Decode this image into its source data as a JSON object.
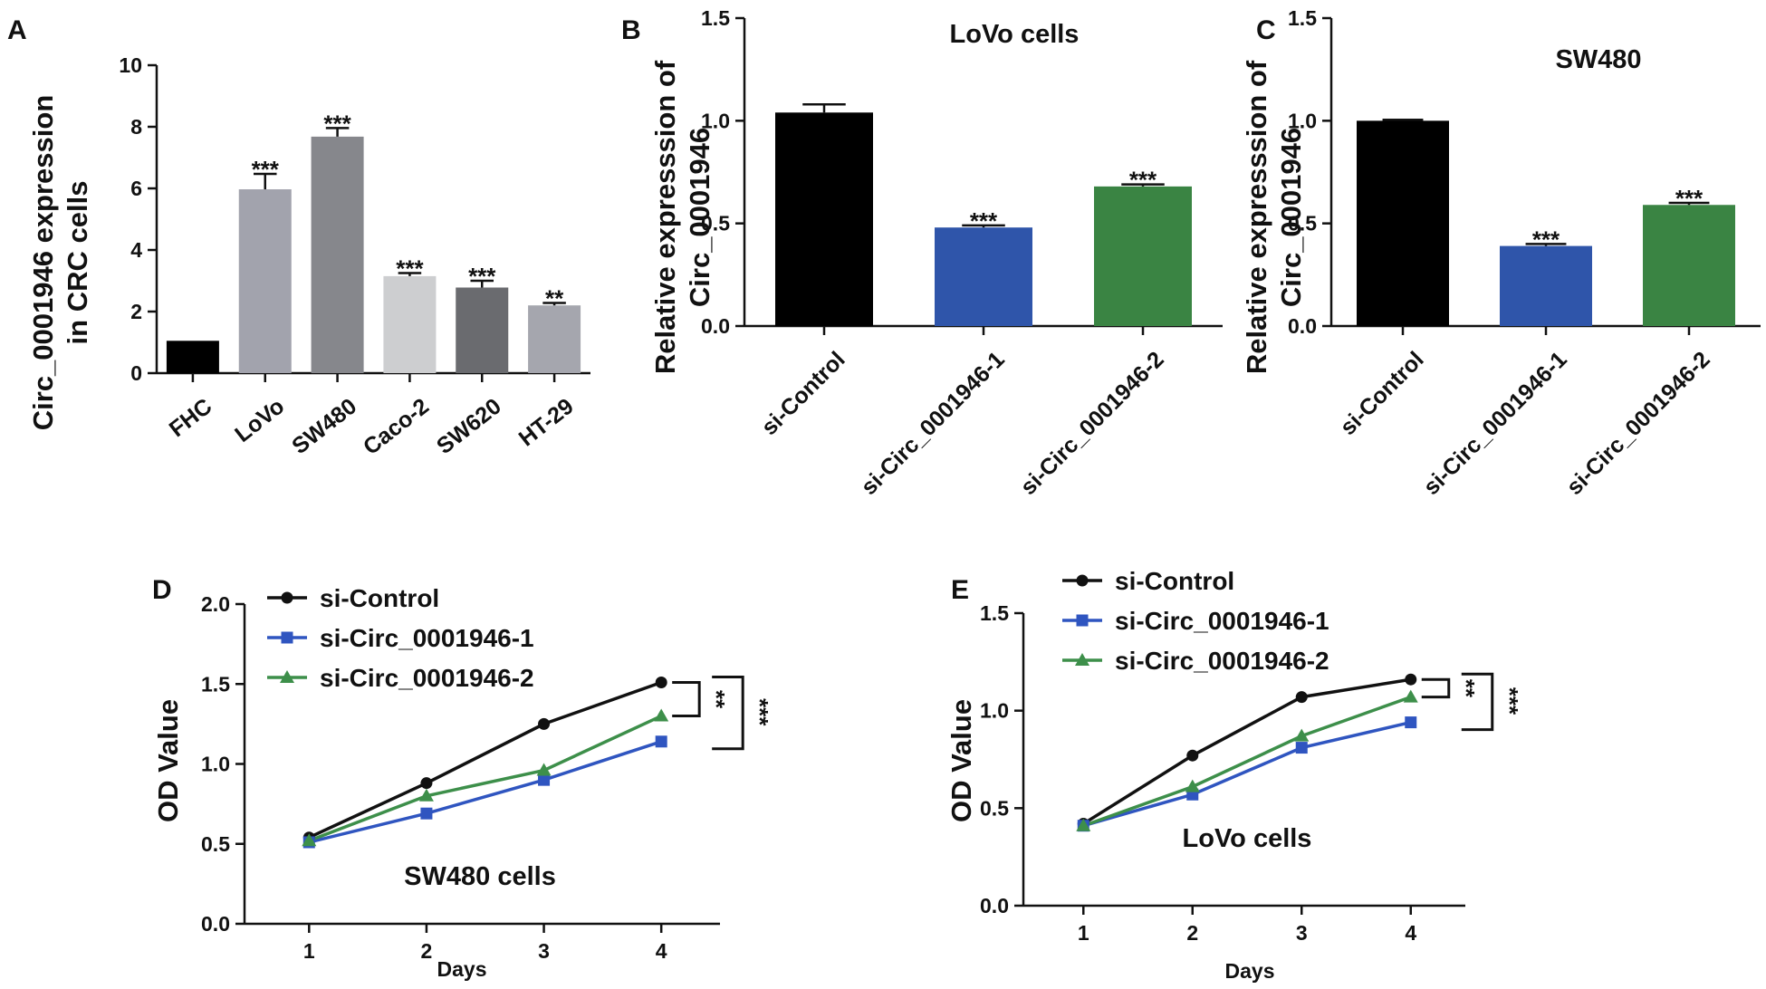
{
  "chart_data": [
    {
      "id": "A",
      "panel_label": "A",
      "type": "bar",
      "title": "",
      "ylabel_lines": [
        "Circ_0001946 expression",
        "in CRC cells"
      ],
      "xlabel": "",
      "ylim": [
        0,
        10
      ],
      "yticks": [
        "0",
        "2",
        "4",
        "6",
        "8",
        "10"
      ],
      "categories": [
        "FHC",
        "LoVo",
        "SW480",
        "Caco-2",
        "SW620",
        "HT-29"
      ],
      "values": [
        1.05,
        5.97,
        7.68,
        3.15,
        2.78,
        2.2
      ],
      "errors": [
        0,
        0.5,
        0.28,
        0.1,
        0.22,
        0.08
      ],
      "colors": [
        "#000000",
        "#a2a3ad",
        "#86878c",
        "#cdced0",
        "#6a6b6f",
        "#a5a6ae"
      ],
      "significance": [
        "",
        "***",
        "***",
        "***",
        "***",
        "**"
      ]
    },
    {
      "id": "B",
      "panel_label": "B",
      "type": "bar",
      "title": "LoVo cells",
      "ylabel_lines": [
        "Relative expresssion of",
        "Circ_0001946"
      ],
      "xlabel": "",
      "ylim": [
        0,
        1.5
      ],
      "yticks": [
        "0.0",
        "0.5",
        "1.0",
        "1.5"
      ],
      "categories": [
        "si-Control",
        "si-Circ_0001946-1",
        "si-Circ_0001946-2"
      ],
      "values": [
        1.04,
        0.48,
        0.68
      ],
      "errors": [
        0.04,
        0.01,
        0.01
      ],
      "colors": [
        "#000000",
        "#2f55aa",
        "#3a8443"
      ],
      "significance": [
        "",
        "***",
        "***"
      ]
    },
    {
      "id": "C",
      "panel_label": "C",
      "type": "bar",
      "title": "SW480",
      "ylabel_lines": [
        "Relative expresssion of",
        "Circ_0001946"
      ],
      "xlabel": "",
      "ylim": [
        0,
        1.5
      ],
      "yticks": [
        "0.0",
        "0.5",
        "1.0",
        "1.5"
      ],
      "categories": [
        "si-Control",
        "si-Circ_0001946-1",
        "si-Circ_0001946-2"
      ],
      "values": [
        1.0,
        0.39,
        0.59
      ],
      "errors": [
        0.005,
        0.01,
        0.01
      ],
      "colors": [
        "#000000",
        "#2f55aa",
        "#3a8443"
      ],
      "significance": [
        "",
        "***",
        "***"
      ]
    },
    {
      "id": "D",
      "panel_label": "D",
      "type": "line",
      "title": "SW480 cells",
      "xlabel": "Days",
      "ylabel": "OD Value",
      "x": [
        1,
        2,
        3,
        4
      ],
      "xlim": [
        0.45,
        4.5
      ],
      "ylim": [
        0,
        2.0
      ],
      "yticks": [
        "0.0",
        "0.5",
        "1.0",
        "1.5",
        "2.0"
      ],
      "xticks": [
        "1",
        "2",
        "3",
        "4"
      ],
      "series": [
        {
          "name": "si-Control",
          "values": [
            0.54,
            0.88,
            1.25,
            1.51
          ],
          "color": "#111111",
          "marker": "circle"
        },
        {
          "name": "si-Circ_0001946-1",
          "values": [
            0.51,
            0.69,
            0.9,
            1.14
          ],
          "color": "#2f55c0",
          "marker": "square"
        },
        {
          "name": "si-Circ_0001946-2",
          "values": [
            0.52,
            0.8,
            0.96,
            1.3
          ],
          "color": "#3d8f4a",
          "marker": "triangle"
        }
      ],
      "significance": [
        "**",
        "***"
      ],
      "legend_position": "top-left"
    },
    {
      "id": "E",
      "panel_label": "E",
      "type": "line",
      "title": "LoVo cells",
      "xlabel": "Days",
      "ylabel": "OD Value",
      "x": [
        1,
        2,
        3,
        4
      ],
      "xlim": [
        0.45,
        4.5
      ],
      "ylim": [
        0,
        1.5
      ],
      "yticks": [
        "0.0",
        "0.5",
        "1.0",
        "1.5"
      ],
      "xticks": [
        "1",
        "2",
        "3",
        "4"
      ],
      "series": [
        {
          "name": "si-Control",
          "values": [
            0.42,
            0.77,
            1.07,
            1.16
          ],
          "color": "#111111",
          "marker": "circle"
        },
        {
          "name": "si-Circ_0001946-1",
          "values": [
            0.41,
            0.57,
            0.81,
            0.94
          ],
          "color": "#2f55c0",
          "marker": "square"
        },
        {
          "name": "si-Circ_0001946-2",
          "values": [
            0.41,
            0.61,
            0.87,
            1.07
          ],
          "color": "#3d8f4a",
          "marker": "triangle"
        }
      ],
      "significance": [
        "**",
        "***"
      ],
      "legend_position": "top-left"
    }
  ]
}
